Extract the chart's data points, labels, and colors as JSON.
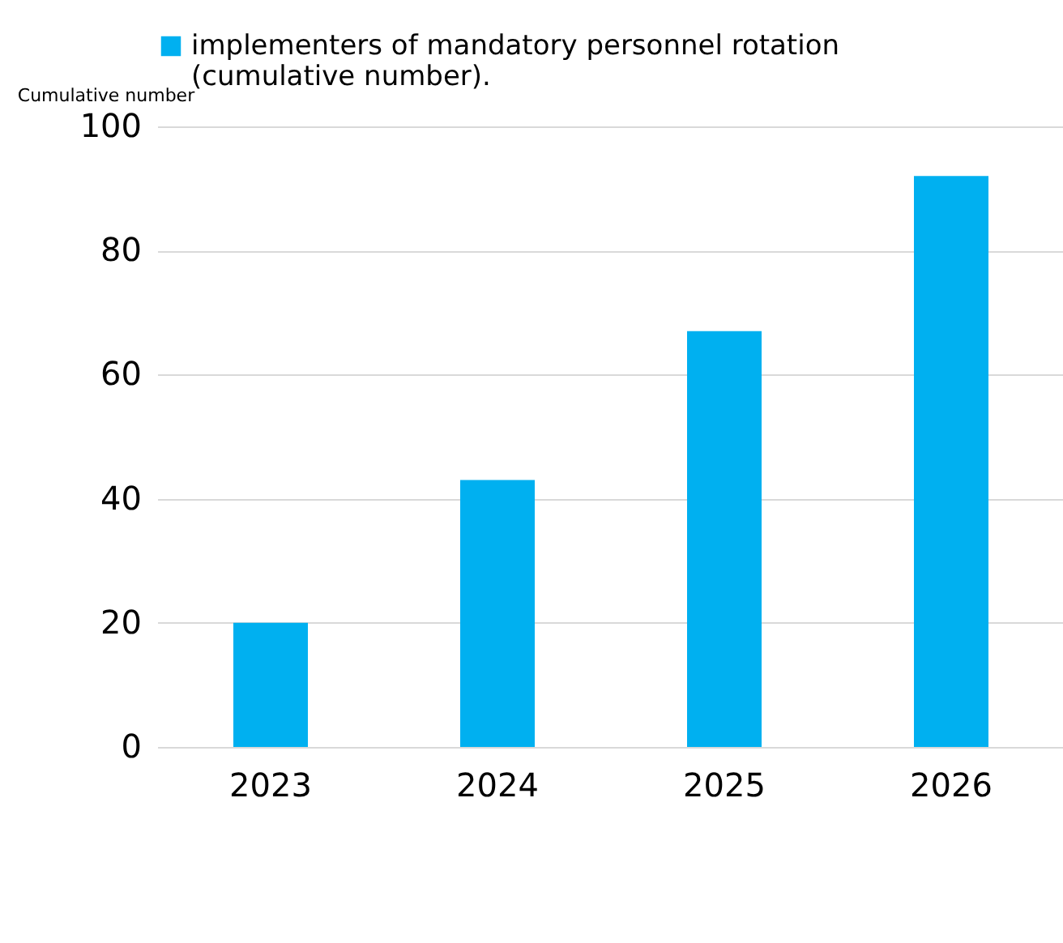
{
  "chart_data": {
    "type": "bar",
    "ylabel": "Cumulative number",
    "categories": [
      "2023",
      "2024",
      "2025",
      "2026"
    ],
    "series": [
      {
        "name": "implementers  of mandatory personnel rotation (cumulative number).",
        "color": "#00b0f0",
        "values": [
          20,
          43,
          67,
          92
        ]
      }
    ],
    "ylim": [
      0,
      100
    ],
    "yticks": [
      0,
      20,
      40,
      60,
      80,
      100
    ],
    "grid": "y",
    "legend": "top"
  }
}
